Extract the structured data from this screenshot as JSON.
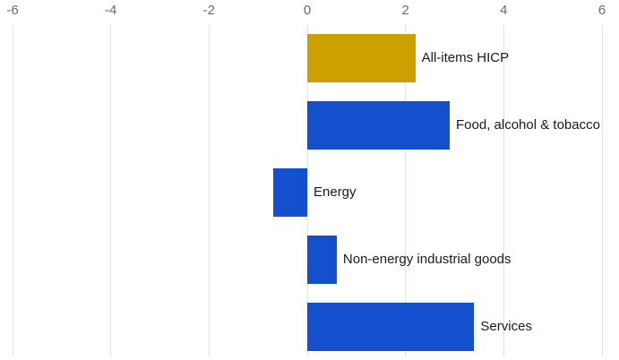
{
  "chart_data": {
    "type": "bar",
    "orientation": "horizontal",
    "title": "",
    "categories": [
      "All-items HICP",
      "Food, alcohol & tobacco",
      "Energy",
      "Non-energy industrial goods",
      "Services"
    ],
    "values": [
      2.2,
      2.9,
      -0.7,
      0.6,
      3.4
    ],
    "bar_colors": [
      "#CCA000",
      "#1450CD",
      "#1450CD",
      "#1450CD",
      "#1450CD"
    ],
    "xlim": [
      -6,
      6
    ],
    "x_ticks": [
      -6,
      -4,
      -2,
      0,
      2,
      4,
      6
    ],
    "x_tick_labels": [
      "-6",
      "-4",
      "-2",
      "0",
      "2",
      "4",
      "6"
    ],
    "xlabel": "",
    "ylabel": "",
    "legend": "none",
    "grid": "vertical",
    "axis_labels_position": "top",
    "colors": {
      "highlight_gold": "#CCA000",
      "primary_blue": "#1450CD",
      "gridline": "#dde3ea",
      "tick_label": "#6b6b6b",
      "bar_label": "#1a1a1a",
      "background": "#ffffff"
    }
  }
}
